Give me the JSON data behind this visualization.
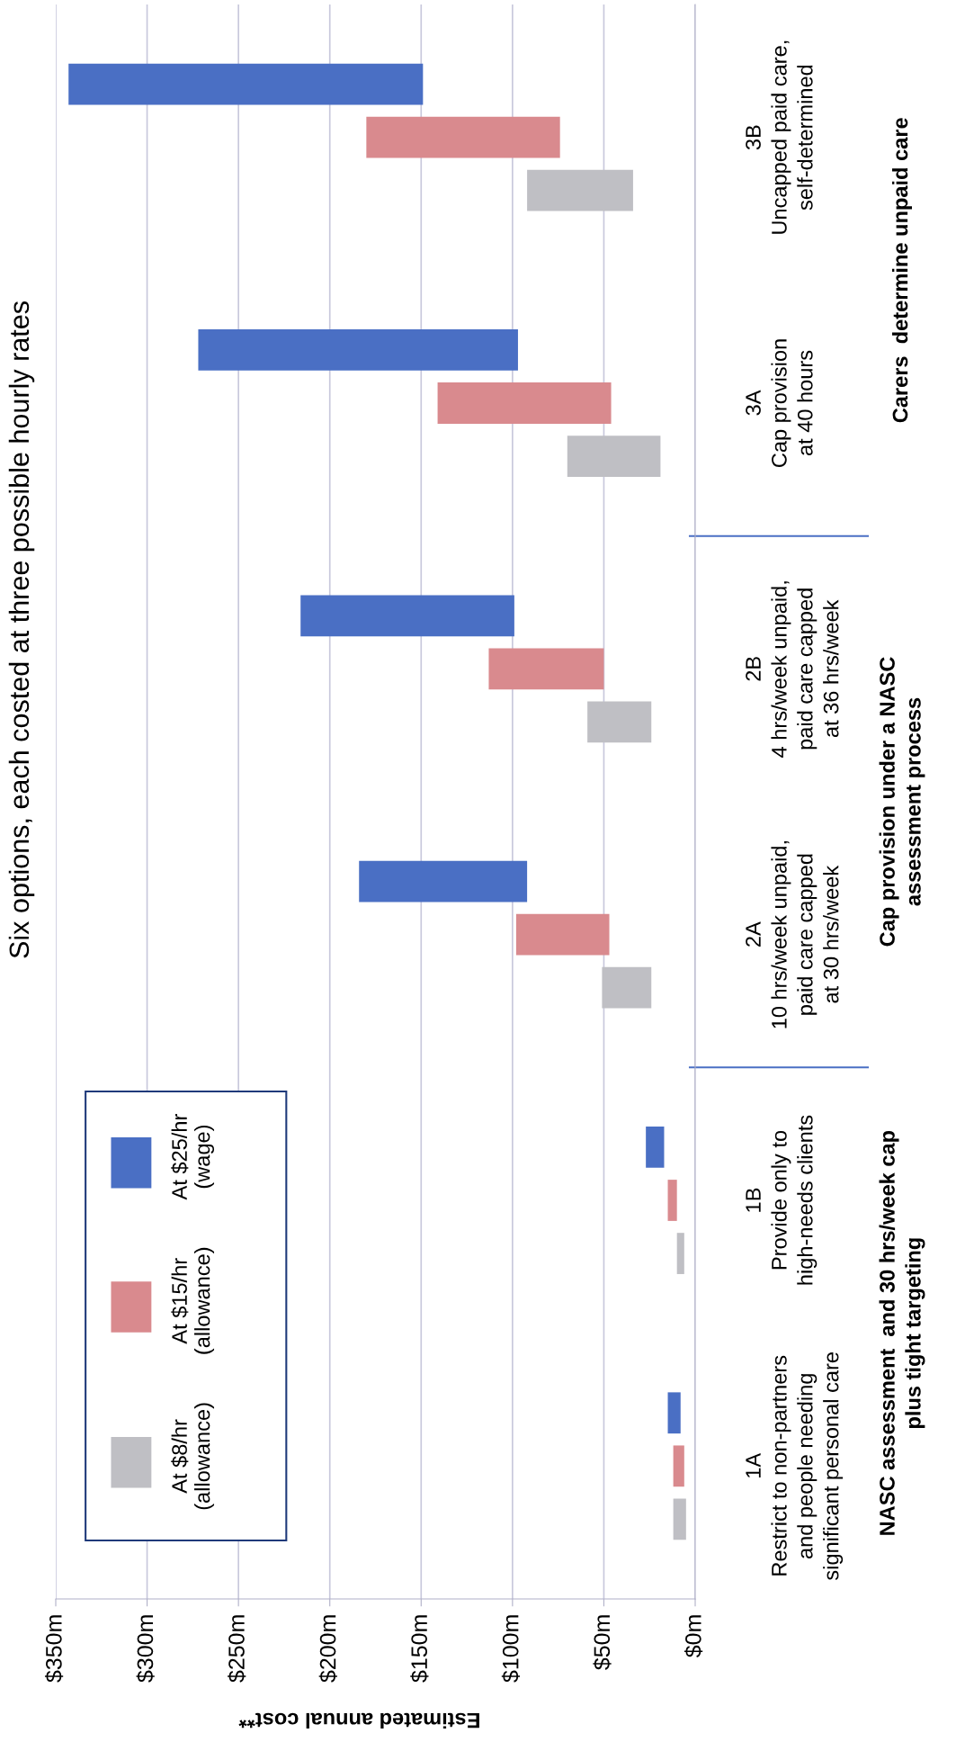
{
  "chart_data": {
    "type": "bar",
    "orientation": "horizontal",
    "title": "Six options, each costed at three possible hourly rates",
    "xlabel": "Estimated annual cost**",
    "categories": [
      "3B\nUncapped paid care,\nself-determined",
      "3A\nCap provision\nat 40 hours",
      "2B\n4 hrs/week unpaid,\npaid care capped\nat 36 hrs/week",
      "2A\n10 hrs/week unpaid,\npaid care capped\nat 30 hrs/week",
      "1B\nProvide only to\nhigh-needs clients",
      "1A\nRestrict to non-partners\nand people needing\nsignificant personal care"
    ],
    "series": [
      {
        "name": "At $8/hr\n(allowance)",
        "color": "#bfbfc4",
        "base": [
          34,
          19,
          24,
          24,
          6,
          5
        ],
        "values": [
          58,
          51,
          35,
          27,
          4,
          7
        ]
      },
      {
        "name": "At $15/hr\n(allowance)",
        "color": "#d98a8e",
        "base": [
          74,
          46,
          50,
          47,
          10,
          6
        ],
        "values": [
          106,
          95,
          63,
          51,
          5,
          6
        ]
      },
      {
        "name": "At $25/hr\n(wage)",
        "color": "#4a6fc4",
        "base": [
          149,
          97,
          99,
          92,
          17,
          8
        ],
        "values": [
          194,
          175,
          117,
          92,
          10,
          7
        ]
      }
    ],
    "xlim": [
      350,
      0
    ],
    "xticks": [
      {
        "value": 350,
        "label": "$350m"
      },
      {
        "value": 300,
        "label": "$300m"
      },
      {
        "value": 250,
        "label": "$250m"
      },
      {
        "value": 200,
        "label": "$200m"
      },
      {
        "value": 150,
        "label": "$150m"
      },
      {
        "value": 100,
        "label": "$100m"
      },
      {
        "value": 50,
        "label": "$50m"
      },
      {
        "value": 0,
        "label": "$0m"
      }
    ],
    "grid": "x",
    "legend": "bottom left",
    "annotations": [
      "Carers  determine unpaid care",
      "Cap provision under a NASC\nassessment process",
      "NASC assessment  and 30 hrs/week cap\nplus tight targeting"
    ]
  }
}
